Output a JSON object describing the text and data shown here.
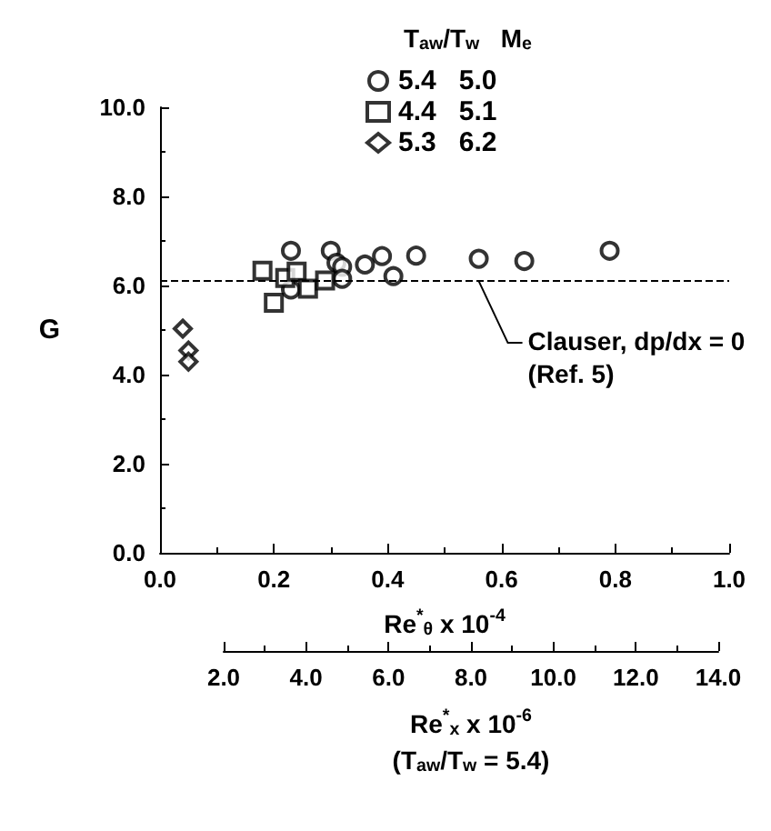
{
  "chart_data": {
    "type": "scatter",
    "xlabel": "Re$^{*}$$_{θ}$ x 10$^{-4}$",
    "ylabel": "G",
    "x2label": "Re$^{*}$$_{x}$ x 10$^{-6}$\n(T$_{aw}$/T$_{w}$ = 5.4)",
    "legend_title": "T$_{aw}$/T$_{w}$   M$_{e}$",
    "legend": "top",
    "grid": false,
    "xlim": [
      0,
      1.0
    ],
    "xticks": [
      {
        "value": 0,
        "label": "0.0"
      },
      {
        "value": 0.2,
        "label": "0.2"
      },
      {
        "value": 0.4,
        "label": "0.4"
      },
      {
        "value": 0.6,
        "label": "0.6"
      },
      {
        "value": 0.8,
        "label": "0.8"
      },
      {
        "value": 1.0,
        "label": "1.0"
      }
    ],
    "ylim": [
      0,
      10
    ],
    "yticks": [
      {
        "value": 0,
        "label": "0.0"
      },
      {
        "value": 2,
        "label": "2.0"
      },
      {
        "value": 4,
        "label": "4.0"
      },
      {
        "value": 6,
        "label": "6.0"
      },
      {
        "value": 8,
        "label": "8.0"
      },
      {
        "value": 10,
        "label": "10.0"
      }
    ],
    "x2lim": [
      2,
      14
    ],
    "x2ticks": [
      {
        "value": 2,
        "label": "2.0"
      },
      {
        "value": 4,
        "label": "4.0"
      },
      {
        "value": 6,
        "label": "6.0"
      },
      {
        "value": 8,
        "label": "8.0"
      },
      {
        "value": 10,
        "label": "10.0"
      },
      {
        "value": 12,
        "label": "12.0"
      },
      {
        "value": 14,
        "label": "14.0"
      }
    ],
    "ref_lines": [
      {
        "axis": "y",
        "value": 6.1,
        "line_style": "dashed",
        "color": "#000000"
      }
    ],
    "annotations": [
      {
        "text": "Clauser, dp/dx = 0\n(Ref. 5)",
        "x": 0.56,
        "y": 6.1
      }
    ],
    "series": [
      {
        "name": "5.4   5.0",
        "marker": "circle",
        "color": "#000000",
        "x": [
          0.23,
          0.3,
          0.31,
          0.32,
          0.32,
          0.23,
          0.36,
          0.39,
          0.41,
          0.45,
          0.56,
          0.64,
          0.79
        ],
        "values": [
          6.78,
          6.78,
          6.51,
          6.42,
          6.15,
          5.91,
          6.47,
          6.66,
          6.21,
          6.67,
          6.6,
          6.55,
          6.78
        ]
      },
      {
        "name": "4.4   5.1",
        "marker": "square",
        "color": "#000000",
        "x": [
          0.18,
          0.2,
          0.22,
          0.24,
          0.26,
          0.29
        ],
        "values": [
          6.33,
          5.61,
          6.17,
          6.31,
          5.93,
          6.11
        ]
      },
      {
        "name": "5.3   6.2",
        "marker": "diamond",
        "color": "#000000",
        "x": [
          0.04,
          0.05,
          0.05
        ],
        "values": [
          5.03,
          4.54,
          4.29
        ]
      }
    ]
  }
}
